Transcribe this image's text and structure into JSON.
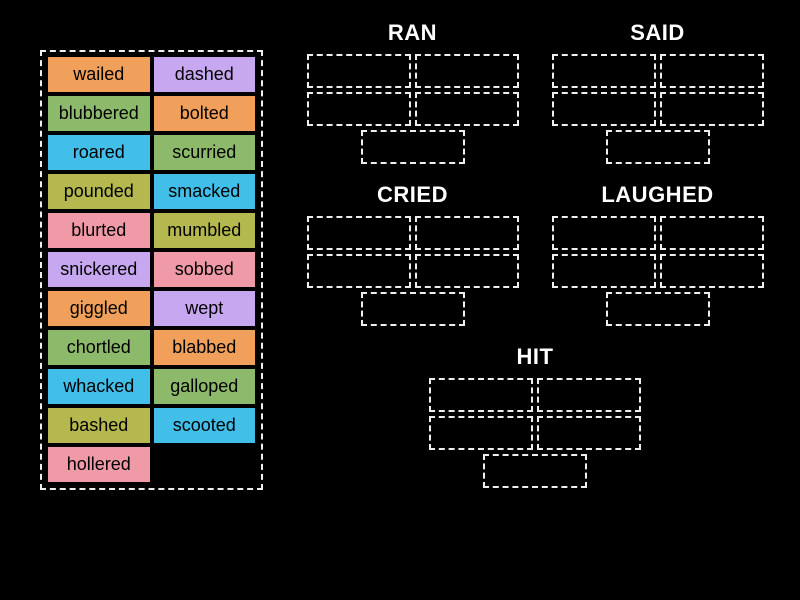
{
  "colors": {
    "orange": "#f0a05a",
    "purple": "#c7a8f0",
    "green": "#8db96a",
    "blue": "#42bfe8",
    "olive": "#b5b84e",
    "pink": "#f09aa8"
  },
  "wordBank": [
    [
      {
        "label": "wailed",
        "color": "orange"
      },
      {
        "label": "dashed",
        "color": "purple"
      }
    ],
    [
      {
        "label": "blubbered",
        "color": "green"
      },
      {
        "label": "bolted",
        "color": "orange"
      }
    ],
    [
      {
        "label": "roared",
        "color": "blue"
      },
      {
        "label": "scurried",
        "color": "green"
      }
    ],
    [
      {
        "label": "pounded",
        "color": "olive"
      },
      {
        "label": "smacked",
        "color": "blue"
      }
    ],
    [
      {
        "label": "blurted",
        "color": "pink"
      },
      {
        "label": "mumbled",
        "color": "olive"
      }
    ],
    [
      {
        "label": "snickered",
        "color": "purple"
      },
      {
        "label": "sobbed",
        "color": "pink"
      }
    ],
    [
      {
        "label": "giggled",
        "color": "orange"
      },
      {
        "label": "wept",
        "color": "purple"
      }
    ],
    [
      {
        "label": "chortled",
        "color": "green"
      },
      {
        "label": "blabbed",
        "color": "orange"
      }
    ],
    [
      {
        "label": "whacked",
        "color": "blue"
      },
      {
        "label": "galloped",
        "color": "green"
      }
    ],
    [
      {
        "label": "bashed",
        "color": "olive"
      },
      {
        "label": "scooted",
        "color": "blue"
      }
    ],
    [
      {
        "label": "hollered",
        "color": "pink"
      },
      null
    ]
  ],
  "targets": {
    "rows": [
      [
        {
          "heading": "RAN"
        },
        {
          "heading": "SAID"
        }
      ],
      [
        {
          "heading": "CRIED"
        },
        {
          "heading": "LAUGHED"
        }
      ],
      [
        {
          "heading": "HIT"
        }
      ]
    ],
    "slotsPerGroup": 5
  },
  "style": {
    "background": "#000000",
    "dashedBorder": "#eeeeee",
    "headingColor": "#ffffff",
    "tileFontSize": 18,
    "headingFontSize": 22,
    "tileWidth": 106,
    "tileHeight": 39,
    "slotWidth": 104,
    "slotHeight": 34
  }
}
